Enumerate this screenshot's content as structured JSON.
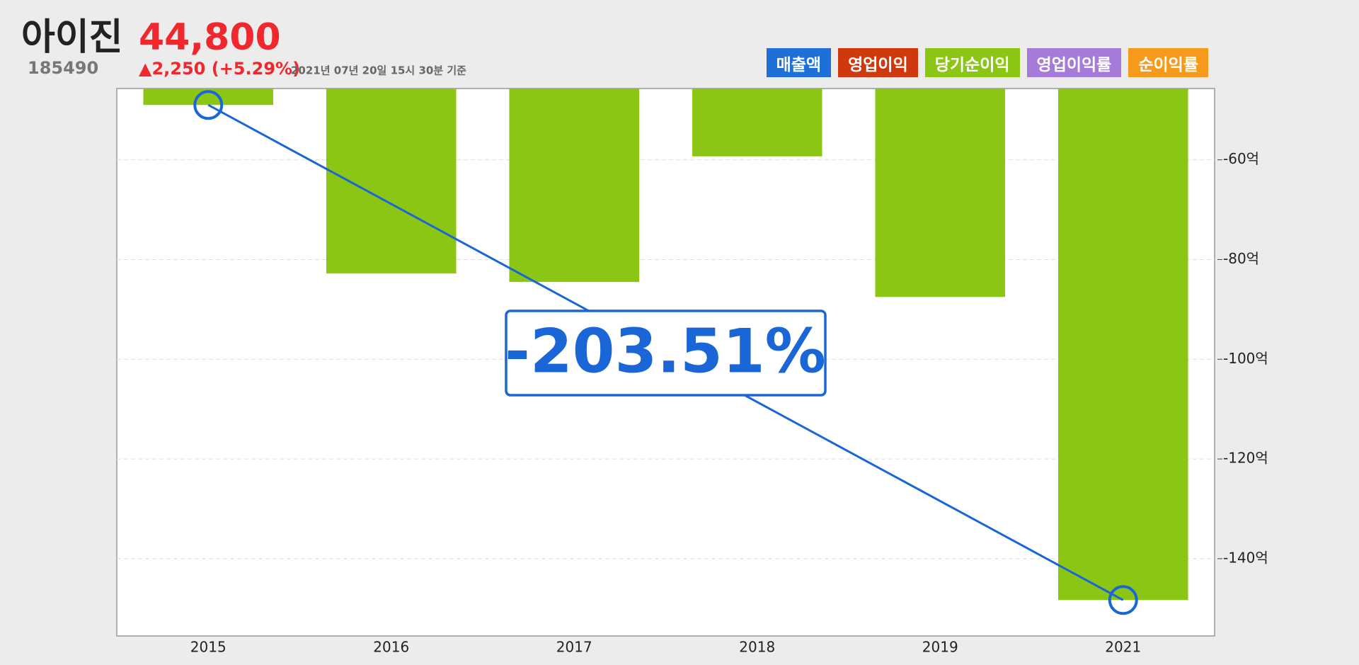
{
  "header": {
    "name": "아이진",
    "price": "44,800",
    "code": "185490",
    "change": "▲2,250 (+5.29%)",
    "timestamp": "2021년 07년 20일 15시 30분 기준"
  },
  "legend_buttons": [
    {
      "label": "매출액",
      "color": "#1f6fd8"
    },
    {
      "label": "영업이익",
      "color": "#d0390e"
    },
    {
      "label": "당기순이익",
      "color": "#8cc614"
    },
    {
      "label": "영업이익률",
      "color": "#a57ad8"
    },
    {
      "label": "순이익률",
      "color": "#f79a1b"
    }
  ],
  "chart_data": {
    "type": "bar",
    "categories": [
      "2015",
      "2016",
      "2017",
      "2018",
      "2019",
      "2021"
    ],
    "values": [
      -49.0,
      -82.8,
      -84.5,
      -59.3,
      -87.5,
      -148.3
    ],
    "color": "#8cc614",
    "ylim": [
      -155.5,
      -45.7
    ],
    "yticks": [
      {
        "value": -60,
        "label": "-60억"
      },
      {
        "value": -80,
        "label": "-80억"
      },
      {
        "value": -100,
        "label": "-100억"
      },
      {
        "value": -120,
        "label": "-120억"
      },
      {
        "value": -140,
        "label": "-140억"
      }
    ],
    "grid": true,
    "trend_color": "#1a66d6",
    "annotation": "-203.51%"
  }
}
